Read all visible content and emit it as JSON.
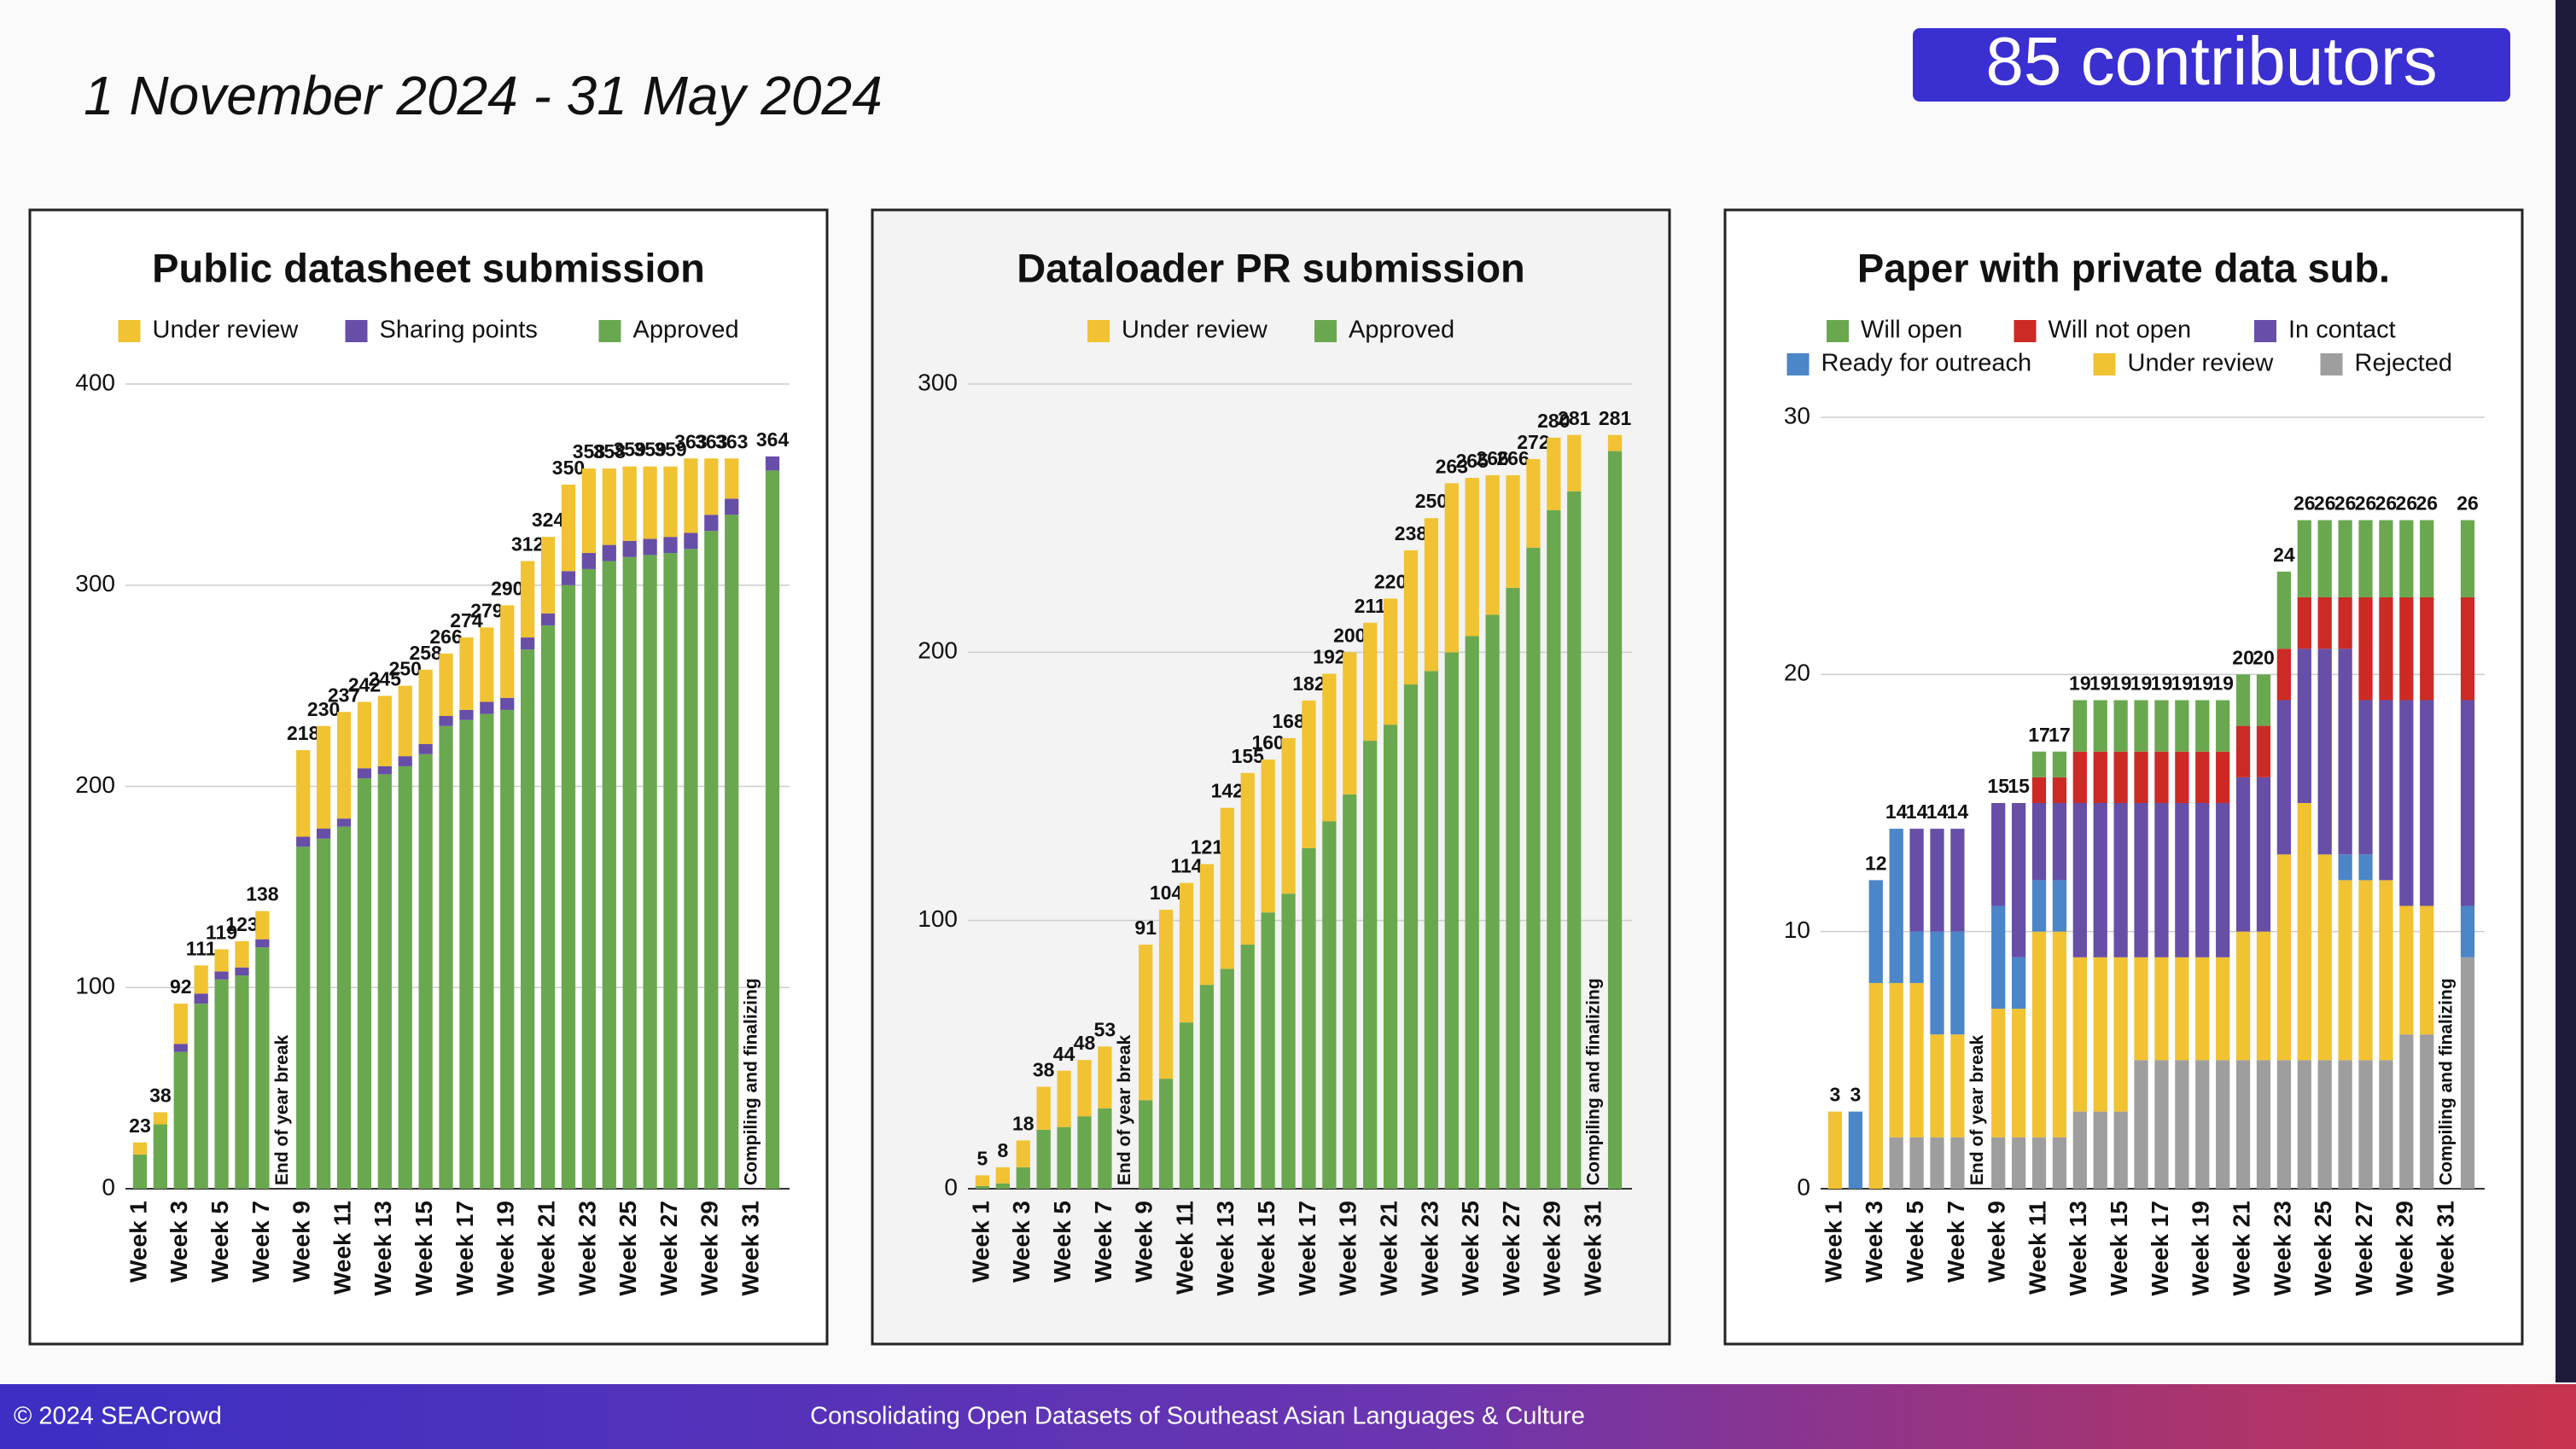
{
  "slide": {
    "date_range": "1 November 2024 - 31 May 2024",
    "badge": "85 contributors",
    "footer_left": "© 2024 SEACrowd",
    "footer_center": "Consolidating Open Datasets of Southeast Asian Languages & Culture"
  },
  "chart_data": [
    {
      "type": "stacked_bar",
      "title": "Public datasheet submission",
      "categories": [
        "Week 1",
        null,
        "Week 3",
        null,
        "Week 5",
        null,
        "Week 7",
        null,
        "Week 9",
        null,
        "Week 11",
        null,
        "Week 13",
        null,
        "Week 15",
        null,
        "Week 17",
        null,
        "Week 19",
        null,
        "Week 21",
        null,
        "Week 23",
        null,
        "Week 25",
        null,
        "Week 27",
        null,
        "Week 29",
        null,
        "Week 31",
        null
      ],
      "series": [
        {
          "name": "Under review",
          "color": "#f1c232",
          "values": [
            6,
            6,
            20,
            14,
            11,
            13,
            14,
            null,
            43,
            51,
            53,
            33,
            35,
            35,
            37,
            31,
            36,
            37,
            46,
            38,
            38,
            43,
            42,
            38,
            37,
            36,
            35,
            37,
            28,
            20,
            null,
            0
          ]
        },
        {
          "name": "Sharing points",
          "color": "#674ea7",
          "values": [
            0,
            0,
            4,
            5,
            4,
            4,
            4,
            null,
            5,
            5,
            4,
            5,
            4,
            5,
            5,
            5,
            5,
            6,
            6,
            6,
            6,
            7,
            8,
            8,
            8,
            8,
            8,
            8,
            8,
            8,
            null,
            7
          ]
        },
        {
          "name": "Approved",
          "color": "#6aa84f",
          "values": [
            17,
            32,
            68,
            92,
            104,
            106,
            120,
            null,
            170,
            174,
            180,
            204,
            206,
            210,
            216,
            230,
            233,
            236,
            238,
            268,
            280,
            300,
            308,
            312,
            314,
            315,
            316,
            318,
            327,
            335,
            null,
            357
          ]
        }
      ],
      "stack_totals": [
        23,
        38,
        92,
        111,
        119,
        123,
        138,
        null,
        218,
        230,
        237,
        242,
        245,
        250,
        258,
        266,
        274,
        279,
        290,
        312,
        324,
        350,
        358,
        358,
        359,
        359,
        359,
        363,
        363,
        363,
        null,
        364
      ],
      "notes": [
        null,
        null,
        null,
        null,
        null,
        null,
        null,
        "End of year break",
        null,
        null,
        null,
        null,
        null,
        null,
        null,
        null,
        null,
        null,
        null,
        null,
        null,
        null,
        null,
        null,
        null,
        null,
        null,
        null,
        null,
        null,
        "Compiling and finalizing",
        null
      ],
      "ylim": [
        0,
        400
      ],
      "yticks": [
        0,
        100,
        200,
        300,
        400
      ],
      "grid": true,
      "background": "#ffffff"
    },
    {
      "type": "stacked_bar",
      "title": "Dataloader PR submission",
      "categories": [
        "Week 1",
        null,
        "Week 3",
        null,
        "Week 5",
        null,
        "Week 7",
        null,
        "Week 9",
        null,
        "Week 11",
        null,
        "Week 13",
        null,
        "Week 15",
        null,
        "Week 17",
        null,
        "Week 19",
        null,
        "Week 21",
        null,
        "Week 23",
        null,
        "Week 25",
        null,
        "Week 27",
        null,
        "Week 29",
        null,
        "Week 31",
        null
      ],
      "series": [
        {
          "name": "Under review",
          "color": "#f1c232",
          "values": [
            4,
            6,
            10,
            16,
            21,
            21,
            23,
            null,
            58,
            63,
            52,
            45,
            60,
            64,
            57,
            58,
            55,
            55,
            53,
            44,
            47,
            50,
            57,
            63,
            59,
            52,
            42,
            33,
            27,
            21,
            null,
            6
          ]
        },
        {
          "name": "Approved",
          "color": "#6aa84f",
          "values": [
            1,
            2,
            8,
            22,
            23,
            27,
            30,
            null,
            33,
            41,
            62,
            76,
            82,
            91,
            103,
            110,
            127,
            137,
            147,
            167,
            173,
            188,
            193,
            200,
            206,
            214,
            224,
            239,
            253,
            260,
            null,
            275
          ]
        }
      ],
      "stack_totals": [
        5,
        8,
        18,
        38,
        44,
        48,
        53,
        null,
        91,
        104,
        114,
        121,
        142,
        155,
        160,
        168,
        182,
        192,
        200,
        211,
        220,
        238,
        250,
        263,
        265,
        266,
        266,
        272,
        280,
        281,
        null,
        281
      ],
      "notes": [
        null,
        null,
        null,
        null,
        null,
        null,
        null,
        "End of year break",
        null,
        null,
        null,
        null,
        null,
        null,
        null,
        null,
        null,
        null,
        null,
        null,
        null,
        null,
        null,
        null,
        null,
        null,
        null,
        null,
        null,
        null,
        "Compiling and finalizing",
        null
      ],
      "ylim": [
        0,
        300
      ],
      "yticks": [
        0,
        100,
        200,
        300
      ],
      "grid": true,
      "background": "#f3f3f3"
    },
    {
      "type": "stacked_bar",
      "title": "Paper with private data sub.",
      "categories": [
        "Week 1",
        null,
        "Week 3",
        null,
        "Week 5",
        null,
        "Week 7",
        null,
        "Week 9",
        null,
        "Week 11",
        null,
        "Week 13",
        null,
        "Week 15",
        null,
        "Week 17",
        null,
        "Week 19",
        null,
        "Week 21",
        null,
        "Week 23",
        null,
        "Week 25",
        null,
        "Week 27",
        null,
        "Week 29",
        null,
        "Week 31",
        null
      ],
      "series": [
        {
          "name": "Will open",
          "color": "#6aa84f",
          "values": [
            0,
            0,
            0,
            0,
            0,
            0,
            0,
            null,
            0,
            0,
            1,
            1,
            2,
            2,
            2,
            2,
            2,
            2,
            2,
            2,
            2,
            2,
            3,
            3,
            3,
            3,
            3,
            3,
            3,
            3,
            null,
            3
          ]
        },
        {
          "name": "Will not open",
          "color": "#cc2a25",
          "values": [
            0,
            0,
            0,
            0,
            0,
            0,
            0,
            null,
            0,
            0,
            1,
            1,
            2,
            2,
            2,
            2,
            2,
            2,
            2,
            2,
            2,
            2,
            2,
            2,
            2,
            2,
            4,
            4,
            4,
            4,
            null,
            4
          ]
        },
        {
          "name": "In contact",
          "color": "#674ea7",
          "values": [
            0,
            0,
            0,
            0,
            4,
            4,
            4,
            null,
            4,
            6,
            3,
            3,
            6,
            6,
            6,
            6,
            6,
            6,
            6,
            6,
            6,
            6,
            6,
            6,
            8,
            8,
            6,
            7,
            8,
            8,
            null,
            8
          ]
        },
        {
          "name": "Ready for outreach",
          "color": "#4a86c8",
          "values": [
            0,
            3,
            4,
            6,
            2,
            4,
            4,
            null,
            4,
            2,
            2,
            2,
            0,
            0,
            0,
            0,
            0,
            0,
            0,
            0,
            0,
            0,
            0,
            0,
            0,
            1,
            1,
            0,
            0,
            0,
            null,
            2
          ]
        },
        {
          "name": "Under review",
          "color": "#f1c232",
          "values": [
            3,
            0,
            8,
            6,
            6,
            4,
            4,
            null,
            5,
            5,
            8,
            8,
            6,
            6,
            6,
            4,
            4,
            4,
            4,
            4,
            5,
            5,
            8,
            10,
            8,
            7,
            7,
            7,
            5,
            5,
            null,
            0
          ]
        },
        {
          "name": "Rejected",
          "color": "#9e9e9e",
          "values": [
            0,
            0,
            0,
            2,
            2,
            2,
            2,
            null,
            2,
            2,
            2,
            2,
            3,
            3,
            3,
            5,
            5,
            5,
            5,
            5,
            5,
            5,
            5,
            5,
            5,
            5,
            5,
            5,
            6,
            6,
            null,
            9
          ]
        }
      ],
      "stack_totals": [
        3,
        3,
        12,
        14,
        14,
        14,
        14,
        null,
        15,
        15,
        17,
        17,
        19,
        19,
        19,
        19,
        19,
        19,
        19,
        19,
        20,
        20,
        24,
        26,
        26,
        26,
        26,
        26,
        26,
        26,
        null,
        26
      ],
      "notes": [
        null,
        null,
        null,
        null,
        null,
        null,
        null,
        "End of year break",
        null,
        null,
        null,
        null,
        null,
        null,
        null,
        null,
        null,
        null,
        null,
        null,
        null,
        null,
        null,
        null,
        null,
        null,
        null,
        null,
        null,
        null,
        "Compiling and finalizing",
        null
      ],
      "ylim": [
        0,
        30
      ],
      "yticks": [
        0,
        10,
        20,
        30
      ],
      "grid": true,
      "background": "#ffffff"
    }
  ]
}
